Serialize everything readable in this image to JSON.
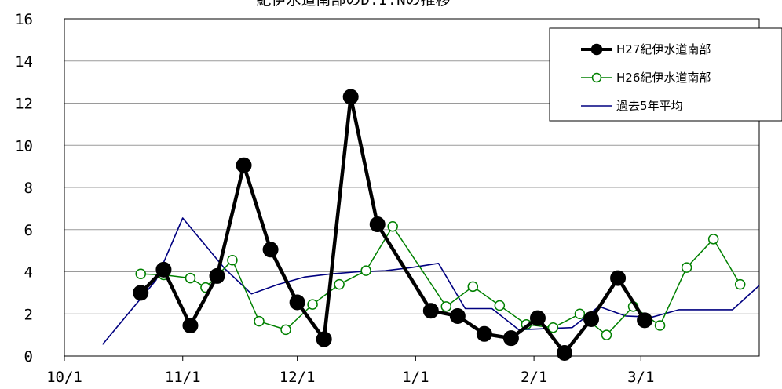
{
  "chart_data": {
    "type": "line",
    "title": "紀伊水道南部のD.I.Nの推移",
    "xlabel": "",
    "ylabel": "",
    "x_ticks": [
      "10/1",
      "11/1",
      "12/1",
      "1/1",
      "2/1",
      "3/1"
    ],
    "x_range_days": [
      0,
      182
    ],
    "ylim": [
      0,
      16
    ],
    "y_ticks": [
      0,
      2,
      4,
      6,
      8,
      10,
      12,
      14,
      16
    ],
    "grid": "horizontal",
    "legend_position": "top-right",
    "series": [
      {
        "name": "H27紀伊水道南部",
        "color": "#000000",
        "marker": "filled-circle",
        "points": [
          [
            20,
            3.0
          ],
          [
            26,
            4.1
          ],
          [
            33,
            1.45
          ],
          [
            40,
            3.8
          ],
          [
            47,
            9.05
          ],
          [
            54,
            5.05
          ],
          [
            61,
            2.55
          ],
          [
            68,
            0.8
          ],
          [
            75,
            12.3
          ],
          [
            82,
            6.25
          ],
          [
            96,
            2.15
          ],
          [
            103,
            1.9
          ],
          [
            110,
            1.05
          ],
          [
            117,
            0.85
          ],
          [
            124,
            1.8
          ],
          [
            131,
            0.15
          ],
          [
            138,
            1.75
          ],
          [
            145,
            3.7
          ],
          [
            152,
            1.7
          ]
        ]
      },
      {
        "name": "H26紀伊水道南部",
        "color": "#008000",
        "marker": "hollow-circle",
        "points": [
          [
            20,
            3.9
          ],
          [
            26,
            3.85
          ],
          [
            33,
            3.7
          ],
          [
            37,
            3.25
          ],
          [
            44,
            4.55
          ],
          [
            51,
            1.65
          ],
          [
            58,
            1.25
          ],
          [
            65,
            2.45
          ],
          [
            72,
            3.4
          ],
          [
            79,
            4.05
          ],
          [
            86,
            6.15
          ],
          [
            100,
            2.35
          ],
          [
            107,
            3.3
          ],
          [
            114,
            2.4
          ],
          [
            121,
            1.5
          ],
          [
            128,
            1.35
          ],
          [
            135,
            2.0
          ],
          [
            142,
            1.0
          ],
          [
            149,
            2.35
          ],
          [
            156,
            1.45
          ],
          [
            163,
            4.2
          ],
          [
            170,
            5.55
          ],
          [
            177,
            3.4
          ]
        ]
      },
      {
        "name": "過去5年平均",
        "color": "#000080",
        "marker": "none",
        "points": [
          [
            10,
            0.55
          ],
          [
            24,
            3.6
          ],
          [
            31,
            6.55
          ],
          [
            42,
            4.15
          ],
          [
            49,
            2.95
          ],
          [
            56,
            3.4
          ],
          [
            63,
            3.75
          ],
          [
            70,
            3.9
          ],
          [
            77,
            4.0
          ],
          [
            84,
            4.05
          ],
          [
            91,
            4.2
          ],
          [
            98,
            4.4
          ],
          [
            105,
            2.25
          ],
          [
            112,
            2.25
          ],
          [
            119,
            1.25
          ],
          [
            126,
            1.3
          ],
          [
            133,
            1.35
          ],
          [
            140,
            2.35
          ],
          [
            147,
            1.9
          ],
          [
            154,
            1.85
          ],
          [
            161,
            2.2
          ],
          [
            168,
            2.2
          ],
          [
            175,
            2.2
          ],
          [
            182,
            3.35
          ]
        ]
      }
    ]
  }
}
